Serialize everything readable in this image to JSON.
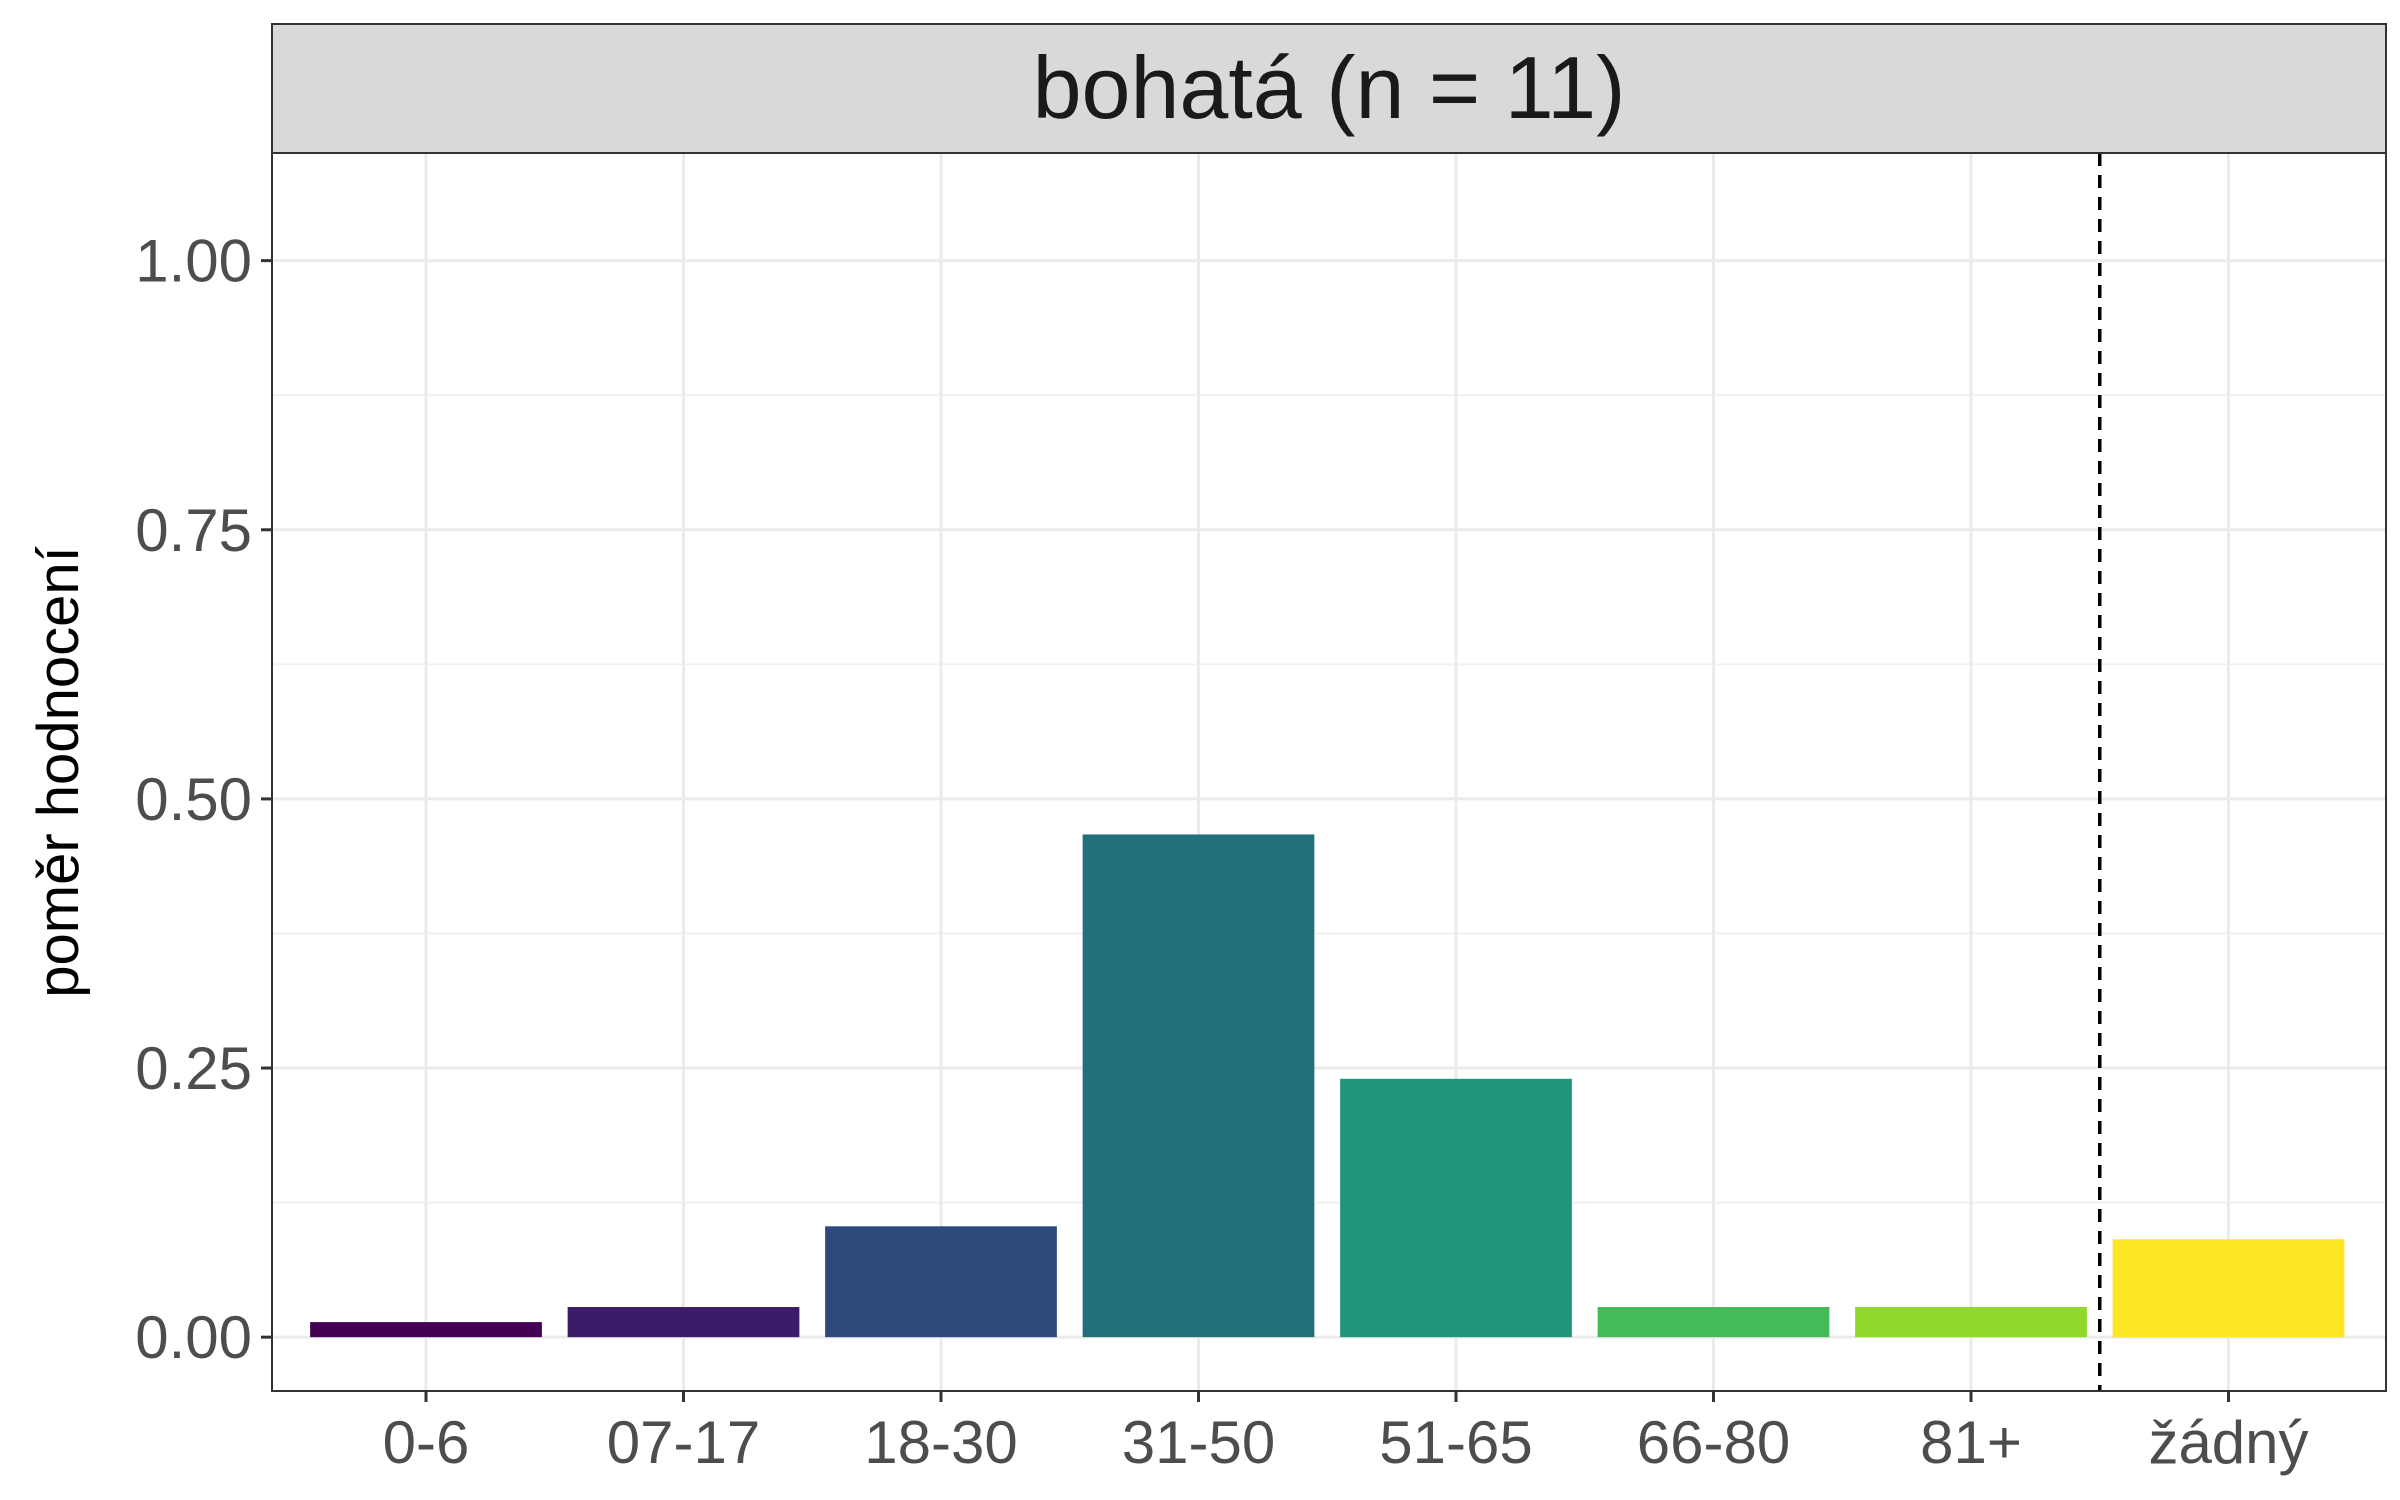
{
  "chart_data": {
    "type": "bar",
    "title": "",
    "panel_title": "bohatá (n = 11)",
    "xlabel": "",
    "ylabel": "poměr hodnocení",
    "categories": [
      "0-6",
      "07-17",
      "18-30",
      "31-50",
      "51-65",
      "66-80",
      "81+",
      "žádný"
    ],
    "values": [
      0.014,
      0.028,
      0.103,
      0.467,
      0.24,
      0.028,
      0.028,
      0.091
    ],
    "colors": [
      "#440154",
      "#3b1c68",
      "#2c4a7c",
      "#21707c",
      "#21957a",
      "#43bb58",
      "#8fd82c",
      "#fde725"
    ],
    "ylim": [
      -0.05,
      1.1
    ],
    "yticks": [
      0.0,
      0.25,
      0.5,
      0.75,
      1.0
    ],
    "ytick_labels": [
      "0.00",
      "0.25",
      "0.50",
      "0.75",
      "1.00"
    ],
    "grid": true,
    "reference_line": {
      "between": [
        "81+",
        "žádný"
      ],
      "style": "dashed"
    },
    "theme": "bw"
  }
}
